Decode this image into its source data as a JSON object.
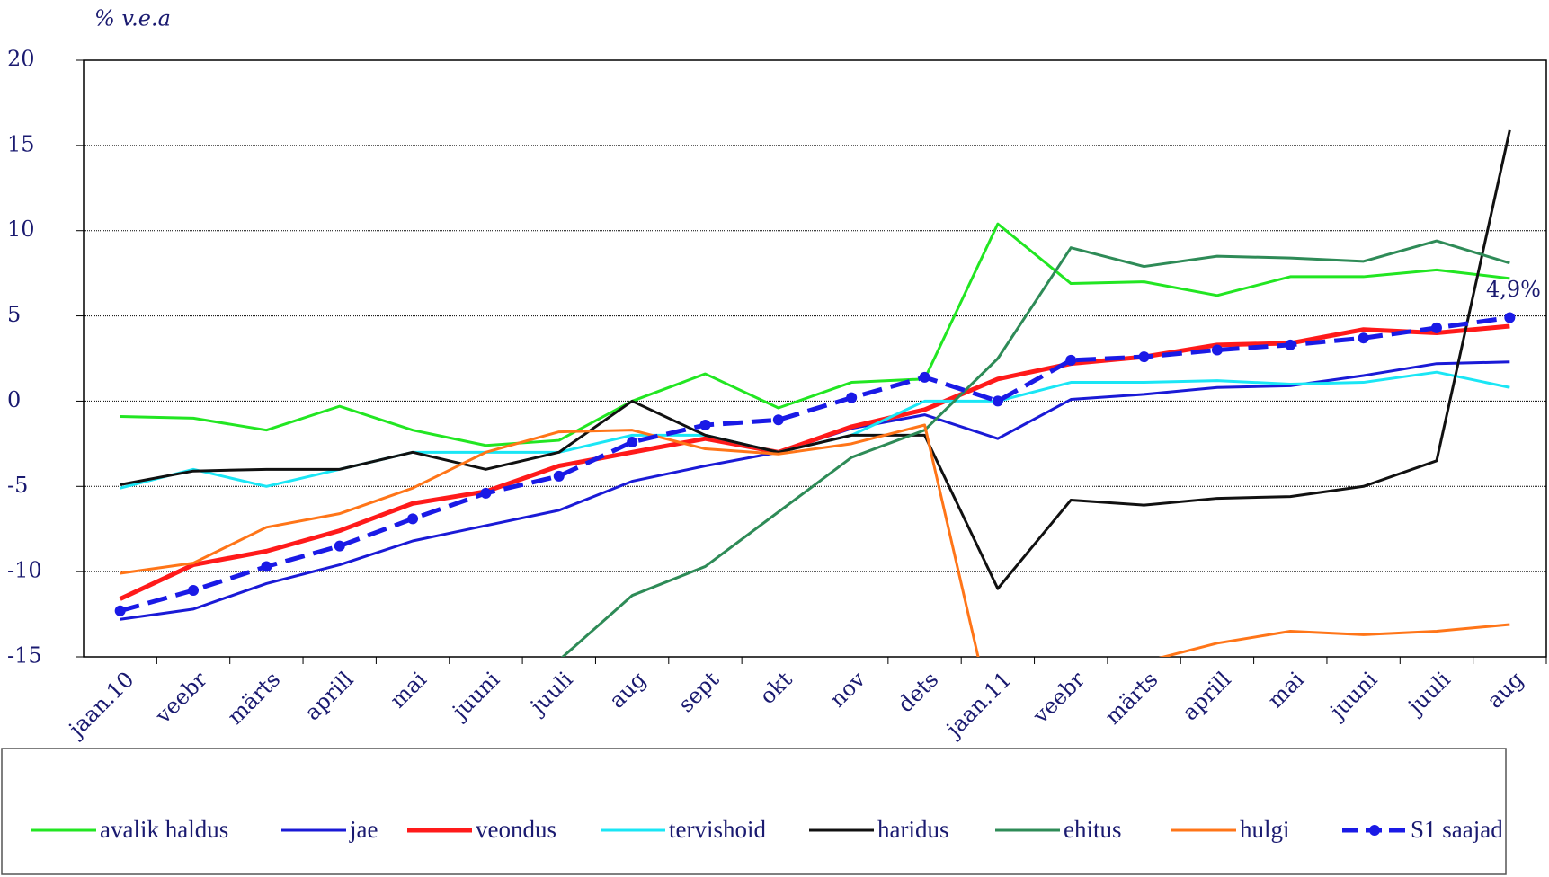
{
  "chart_data": {
    "type": "line",
    "y_label": "% v.e.a",
    "categories": [
      "jaan.10",
      "veebr",
      "märts",
      "aprill",
      "mai",
      "juuni",
      "juuli",
      "aug",
      "sept",
      "okt",
      "nov",
      "dets",
      "jaan.11",
      "veebr",
      "märts",
      "aprill",
      "mai",
      "juuni",
      "juuli",
      "aug"
    ],
    "series": [
      {
        "name": "avalik haldus",
        "color": "#22e622",
        "width": 3,
        "values": [
          -0.9,
          -1.0,
          -1.7,
          -0.3,
          -1.7,
          -2.6,
          -2.3,
          0.0,
          1.6,
          -0.4,
          1.1,
          1.3,
          10.4,
          6.9,
          7.0,
          6.2,
          7.3,
          7.3,
          7.7,
          7.2
        ]
      },
      {
        "name": "jae",
        "color": "#1a1ad6",
        "width": 3,
        "values": [
          -12.8,
          -12.2,
          -10.7,
          -9.6,
          -8.2,
          -7.3,
          -6.4,
          -4.7,
          -3.8,
          -3.0,
          -1.6,
          -0.8,
          -2.2,
          0.1,
          0.4,
          0.8,
          0.9,
          1.5,
          2.2,
          2.3
        ]
      },
      {
        "name": "veondus",
        "color": "#ff1a1a",
        "width": 5,
        "values": [
          -11.6,
          -9.6,
          -8.8,
          -7.6,
          -6.0,
          -5.3,
          -3.8,
          -3.0,
          -2.2,
          -3.0,
          -1.5,
          -0.5,
          1.3,
          2.2,
          2.6,
          3.3,
          3.4,
          4.2,
          4.0,
          4.4
        ]
      },
      {
        "name": "tervishoid",
        "color": "#1ae6f5",
        "width": 3,
        "values": [
          -5.1,
          -4.0,
          -5.0,
          -4.0,
          -3.0,
          -3.0,
          -3.0,
          -2.0,
          -2.0,
          -3.0,
          -2.0,
          0.0,
          0.0,
          1.1,
          1.1,
          1.2,
          1.0,
          1.1,
          1.7,
          0.8
        ]
      },
      {
        "name": "haridus",
        "color": "#111111",
        "width": 3,
        "values": [
          -4.9,
          -4.1,
          -4.0,
          -4.0,
          -3.0,
          -4.0,
          -3.0,
          0.0,
          -2.0,
          -3.0,
          -2.0,
          -2.0,
          -11.0,
          -5.8,
          -6.1,
          -5.7,
          -5.6,
          -5.0,
          -3.5,
          15.9
        ]
      },
      {
        "name": "ehitus",
        "color": "#2e8b57",
        "width": 3,
        "values": [
          null,
          null,
          null,
          null,
          null,
          null,
          -15.2,
          -11.4,
          -9.7,
          -6.5,
          -3.3,
          -1.7,
          2.5,
          9.0,
          7.9,
          8.5,
          8.4,
          8.2,
          9.4,
          8.1
        ]
      },
      {
        "name": "hulgi",
        "color": "#ff7518",
        "width": 3,
        "values": [
          -10.1,
          -9.5,
          -7.4,
          -6.6,
          -5.1,
          -3.0,
          -1.8,
          -1.7,
          -2.8,
          -3.1,
          -2.5,
          -1.4,
          -20,
          -20,
          -15.3,
          -14.2,
          -13.5,
          -13.7,
          -13.5,
          -13.1
        ]
      },
      {
        "name": "S1 saajad",
        "color": "#1a1ae6",
        "width": 5,
        "line_style": "dashed",
        "marker": "circle",
        "values": [
          -12.3,
          -11.1,
          -9.7,
          -8.5,
          -6.9,
          -5.4,
          -4.4,
          -2.4,
          -1.4,
          -1.1,
          0.2,
          1.4,
          0.0,
          2.4,
          2.6,
          3.0,
          3.3,
          3.7,
          4.3,
          4.9
        ]
      }
    ],
    "annotation": "4,9%",
    "ylim": [
      -15,
      20
    ],
    "yticks": [
      -15,
      -10,
      -5,
      0,
      5,
      10,
      15,
      20
    ],
    "grid": true,
    "legend": "bottom"
  }
}
